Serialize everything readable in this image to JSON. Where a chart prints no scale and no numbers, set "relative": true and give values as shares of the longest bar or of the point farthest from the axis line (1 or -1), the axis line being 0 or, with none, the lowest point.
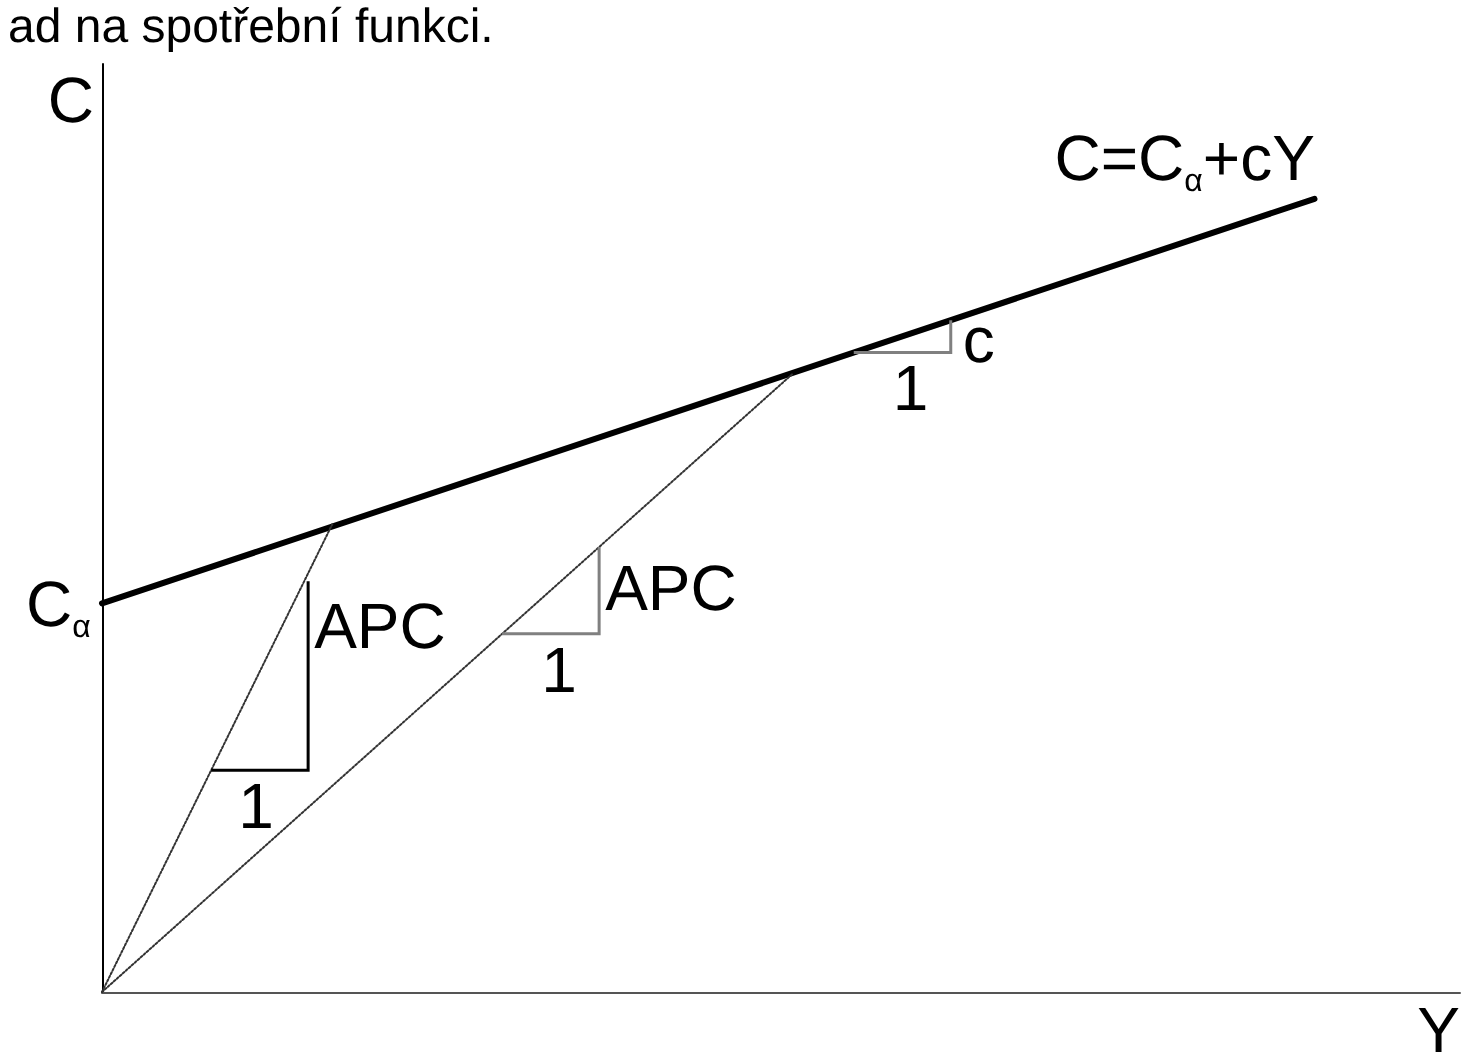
{
  "chart_data": {
    "type": "line",
    "title": "ad na spotřební funkci.",
    "xlabel": "Y",
    "ylabel": "C",
    "relative": true,
    "grid": false,
    "marker": "none",
    "categories": [
      null,
      null,
      null,
      null,
      null,
      null,
      null,
      null,
      null,
      null,
      null,
      null,
      null,
      null,
      null,
      null,
      null,
      null,
      null,
      null,
      null,
      null,
      null,
      null,
      null,
      null,
      null,
      null,
      null,
      null,
      null,
      null,
      null,
      null,
      null,
      null,
      null,
      null,
      null,
      null,
      null,
      null,
      null,
      null,
      null,
      null,
      null,
      null,
      null,
      null,
      null,
      null,
      null,
      null,
      null,
      null,
      null,
      null,
      null,
      null,
      null,
      null,
      null,
      null,
      null,
      null,
      null,
      null,
      null,
      null,
      null,
      null,
      null,
      null,
      null,
      null,
      null,
      null,
      null,
      null,
      null,
      null,
      null,
      null,
      null,
      null,
      null,
      null,
      null,
      null,
      null,
      null,
      null,
      null,
      null,
      null,
      null,
      null,
      null,
      null,
      null,
      null,
      null,
      null,
      null,
      null,
      null,
      null,
      null,
      null,
      null,
      null,
      null
    ],
    "series": [
      {
        "name": "C=C$_{α}$+cY",
        "color": "#000000",
        "line_style": "solid",
        "values": [
          0.49,
          null,
          null,
          null,
          null,
          null,
          null,
          null,
          null,
          null,
          null,
          null,
          null,
          null,
          null,
          null,
          null,
          null,
          null,
          null,
          null,
          null,
          null,
          null,
          null,
          null,
          null,
          null,
          null,
          null,
          null,
          null,
          null,
          null,
          null,
          null,
          null,
          null,
          null,
          null,
          null,
          null,
          null,
          null,
          null,
          null,
          null,
          null,
          null,
          null,
          null,
          null,
          null,
          null,
          null,
          null,
          null,
          null,
          null,
          null,
          null,
          null,
          null,
          null,
          null,
          null,
          null,
          null,
          null,
          null,
          null,
          null,
          null,
          null,
          null,
          null,
          null,
          null,
          null,
          null,
          null,
          null,
          null,
          null,
          null,
          null,
          null,
          null,
          null,
          null,
          null,
          null,
          null,
          null,
          null,
          null,
          null,
          null,
          null,
          null,
          1,
          null,
          null,
          null,
          null,
          null,
          null,
          null,
          null,
          null,
          null,
          null,
          null
        ]
      },
      {
        "color": "#333333",
        "line_style": "dotted",
        "values": [
          0,
          null,
          null,
          null,
          null,
          null,
          null,
          null,
          null,
          null,
          null,
          null,
          null,
          null,
          null,
          null,
          null,
          null,
          null,
          0.59,
          null,
          null,
          null,
          null,
          null,
          null,
          null,
          null,
          null,
          null,
          null,
          null,
          null,
          null,
          null,
          null,
          null,
          null,
          null,
          null,
          null,
          null,
          null,
          null,
          null,
          null,
          null,
          null,
          null,
          null,
          null,
          null,
          null,
          null,
          null,
          null,
          null,
          null,
          null,
          null,
          null,
          null,
          null,
          null,
          null,
          null,
          null,
          null,
          null,
          null,
          null,
          null,
          null,
          null,
          null,
          null,
          null,
          null,
          null,
          null,
          null,
          null,
          null,
          null,
          null,
          null,
          null,
          null,
          null,
          null,
          null,
          null,
          null,
          null,
          null,
          null,
          null,
          null,
          null,
          null,
          null,
          null,
          null,
          null,
          null,
          null,
          null,
          null,
          null,
          null,
          null,
          null,
          null
        ]
      },
      {
        "color": "#333333",
        "line_style": "dotted",
        "values": [
          0,
          null,
          null,
          null,
          null,
          null,
          null,
          null,
          null,
          null,
          null,
          null,
          null,
          null,
          null,
          null,
          null,
          null,
          null,
          null,
          null,
          null,
          null,
          null,
          null,
          null,
          null,
          null,
          null,
          null,
          null,
          null,
          null,
          null,
          null,
          null,
          null,
          null,
          null,
          null,
          null,
          null,
          null,
          null,
          null,
          null,
          null,
          null,
          null,
          null,
          null,
          null,
          null,
          null,
          null,
          null,
          null,
          0.78,
          null,
          null,
          null,
          null,
          null,
          null,
          null,
          null,
          null,
          null,
          null,
          null,
          null,
          null,
          null,
          null,
          null,
          null,
          null,
          null,
          null,
          null,
          null,
          null,
          null,
          null,
          null,
          null,
          null,
          null,
          null,
          null,
          null,
          null,
          null,
          null,
          null,
          null,
          null,
          null,
          null,
          null,
          null,
          null,
          null,
          null,
          null,
          null,
          null,
          null,
          null,
          null,
          null,
          null,
          null
        ]
      }
    ],
    "annotations": [
      "C$_{α}$",
      "APC",
      "1",
      "APC",
      "1",
      "c",
      "1"
    ]
  }
}
